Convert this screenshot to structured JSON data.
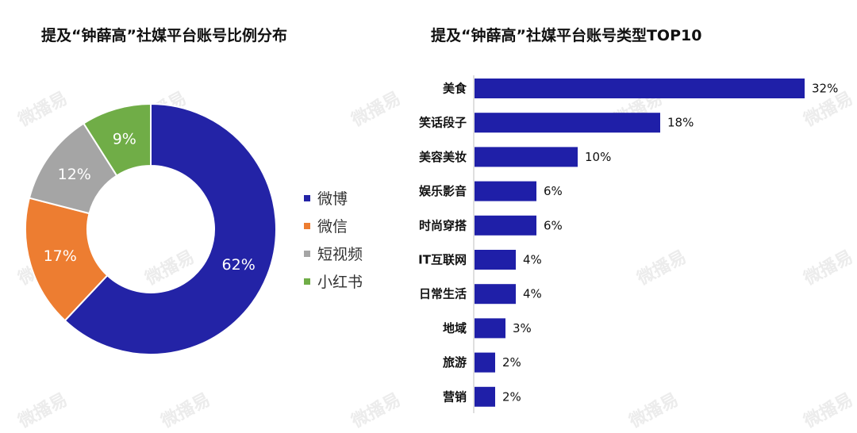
{
  "chart_data": [
    {
      "type": "pie",
      "title": "提及“钟薛高”社媒平台账号比例分布",
      "categories": [
        "微博",
        "微信",
        "短视频",
        "小红书"
      ],
      "values": [
        62,
        17,
        12,
        9
      ],
      "value_labels": [
        "62%",
        "17%",
        "12%",
        "9%"
      ],
      "colors": [
        "#2323a6",
        "#ed7d31",
        "#a5a5a5",
        "#70ad47"
      ],
      "legend_position": "right"
    },
    {
      "type": "bar",
      "orientation": "horizontal",
      "title": "提及“钟薛高”社媒平台账号类型TOP10",
      "categories": [
        "美食",
        "笑话段子",
        "美容美妆",
        "娱乐影音",
        "时尚穿搭",
        "IT互联网",
        "日常生活",
        "地域",
        "旅游",
        "营销"
      ],
      "values": [
        32,
        18,
        10,
        6,
        6,
        4,
        4,
        3,
        2,
        2
      ],
      "value_labels": [
        "32%",
        "18%",
        "10%",
        "6%",
        "6%",
        "4%",
        "4%",
        "3%",
        "2%",
        "2%"
      ],
      "color": "#1f1fa8",
      "grid": false
    }
  ],
  "watermark": "微播易"
}
